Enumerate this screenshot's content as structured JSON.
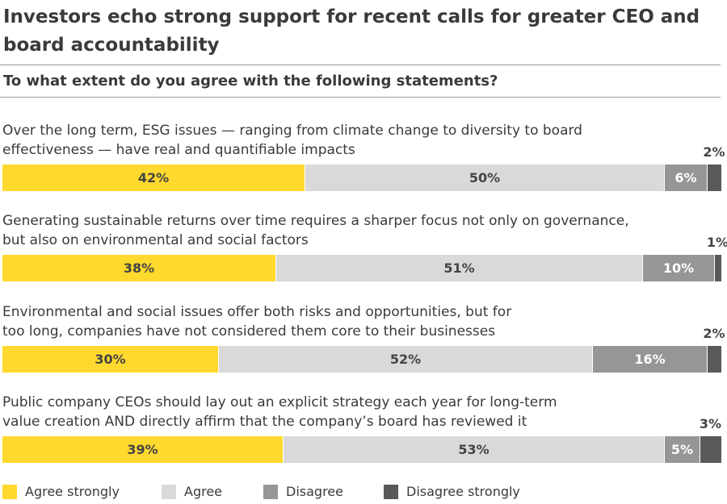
{
  "colors": {
    "agree_strongly": "#FFD92E",
    "agree": "#D9D9D9",
    "disagree": "#969696",
    "disagree_strongly": "#595959"
  },
  "chart_data": {
    "type": "bar",
    "orientation": "horizontal",
    "stacked": true,
    "title": "Investors echo strong support for recent calls for greater CEO and board accountability",
    "subtitle": "To what extent do you agree with the following statements?",
    "categories": [
      "Over the long term, ESG issues — ranging from climate change to diversity to board effectiveness — have real and quantifiable impacts",
      "Generating sustainable returns over time requires a sharper focus not only on governance, but also on environmental and social factors",
      "Environmental and social issues offer both risks and opportunities, but for too long, companies have not considered them core to their businesses",
      "Public company CEOs should lay out an explicit strategy each year for long-term value creation AND directly affirm that the company’s board has reviewed it"
    ],
    "category_lines": [
      [
        "Over the long term, ESG issues — ranging from climate change to diversity to board",
        "effectiveness — have real and quantifiable impacts"
      ],
      [
        "Generating sustainable returns over time requires a sharper focus not only on governance,",
        "but also on environmental and social factors"
      ],
      [
        "Environmental and social issues offer both risks and opportunities, but for",
        "too long, companies have not considered them core to their businesses"
      ],
      [
        "Public company CEOs should lay out an explicit strategy each year for long-term",
        "value creation AND directly affirm that the company’s board has reviewed it"
      ]
    ],
    "series": [
      {
        "name": "Agree strongly",
        "values": [
          42,
          38,
          30,
          39
        ],
        "labels": [
          "42%",
          "38%",
          "30%",
          "39%"
        ]
      },
      {
        "name": "Agree",
        "values": [
          50,
          51,
          52,
          53
        ],
        "labels": [
          "50%",
          "51%",
          "52%",
          "53%"
        ]
      },
      {
        "name": "Disagree",
        "values": [
          6,
          10,
          16,
          5
        ],
        "labels": [
          "6%",
          "10%",
          "16%",
          "5%"
        ]
      },
      {
        "name": "Disagree strongly",
        "values": [
          2,
          1,
          2,
          3
        ],
        "labels": [
          "2%",
          "1%",
          "2%",
          "3%"
        ]
      }
    ],
    "xlim": [
      0,
      100
    ],
    "legend": "bottom"
  }
}
